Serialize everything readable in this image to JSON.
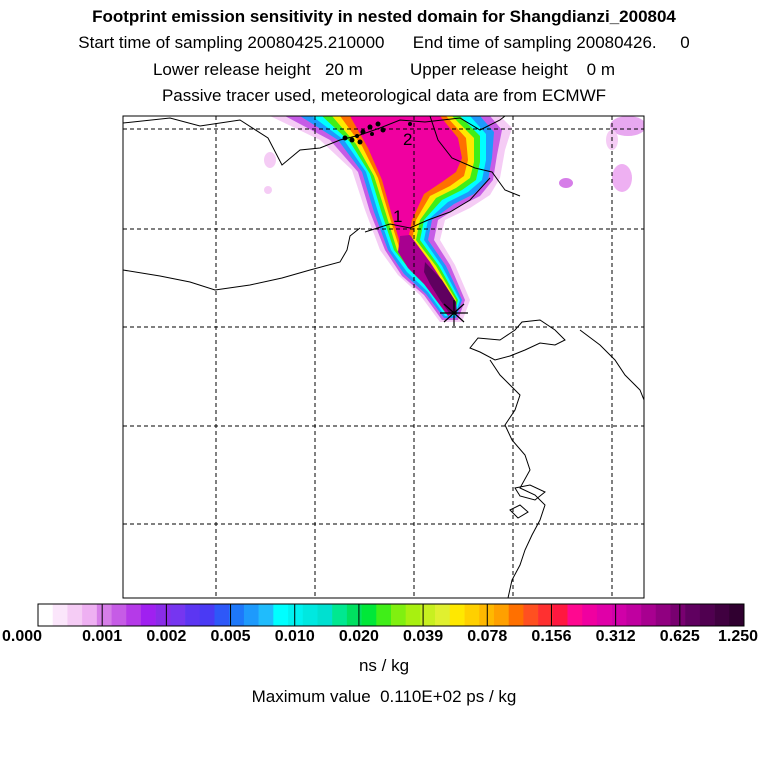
{
  "header": {
    "title": "Footprint emission sensitivity in nested domain for Shangdianzi_200804",
    "sampling": "Start time of sampling 20080425.210000      End time of sampling 20080426.     0",
    "release": "Lower release height   20 m          Upper release height    0 m",
    "tracer": "Passive tracer used, meteorological data are from ECMWF"
  },
  "map": {
    "trajectory_labels": [
      "2",
      "1"
    ]
  },
  "colorbar": {
    "ticks": [
      "0.000",
      "0.001",
      "0.002",
      "0.005",
      "0.010",
      "0.020",
      "0.039",
      "0.078",
      "0.156",
      "0.312",
      "0.625",
      "1.250"
    ],
    "colors": [
      "#ffffff",
      "#fbe6fb",
      "#f5ccf5",
      "#eeb0f2",
      "#d67ee8",
      "#c65ce6",
      "#b53ae8",
      "#a020f0",
      "#8a2ce8",
      "#7636f0",
      "#5c36f2",
      "#4a3af4",
      "#2e58f8",
      "#1e78fa",
      "#1e9afc",
      "#20bcfc",
      "#00ffff",
      "#00f2f0",
      "#00e8e0",
      "#00e0d0",
      "#00e890",
      "#00e060",
      "#00e838",
      "#40ee18",
      "#80f010",
      "#a8f010",
      "#c8f020",
      "#e0f030",
      "#ffe800",
      "#ffd000",
      "#ffb800",
      "#ffa000",
      "#ff7000",
      "#ff5020",
      "#ff3030",
      "#ff1840",
      "#ff0890",
      "#f000a0",
      "#e000a8",
      "#d000a8",
      "#c000a0",
      "#a80090",
      "#900080",
      "#780070",
      "#600060",
      "#500050",
      "#400040",
      "#300030"
    ],
    "units": "ns / kg",
    "maximum": "Maximum value  0.110E+02 ps / kg"
  }
}
